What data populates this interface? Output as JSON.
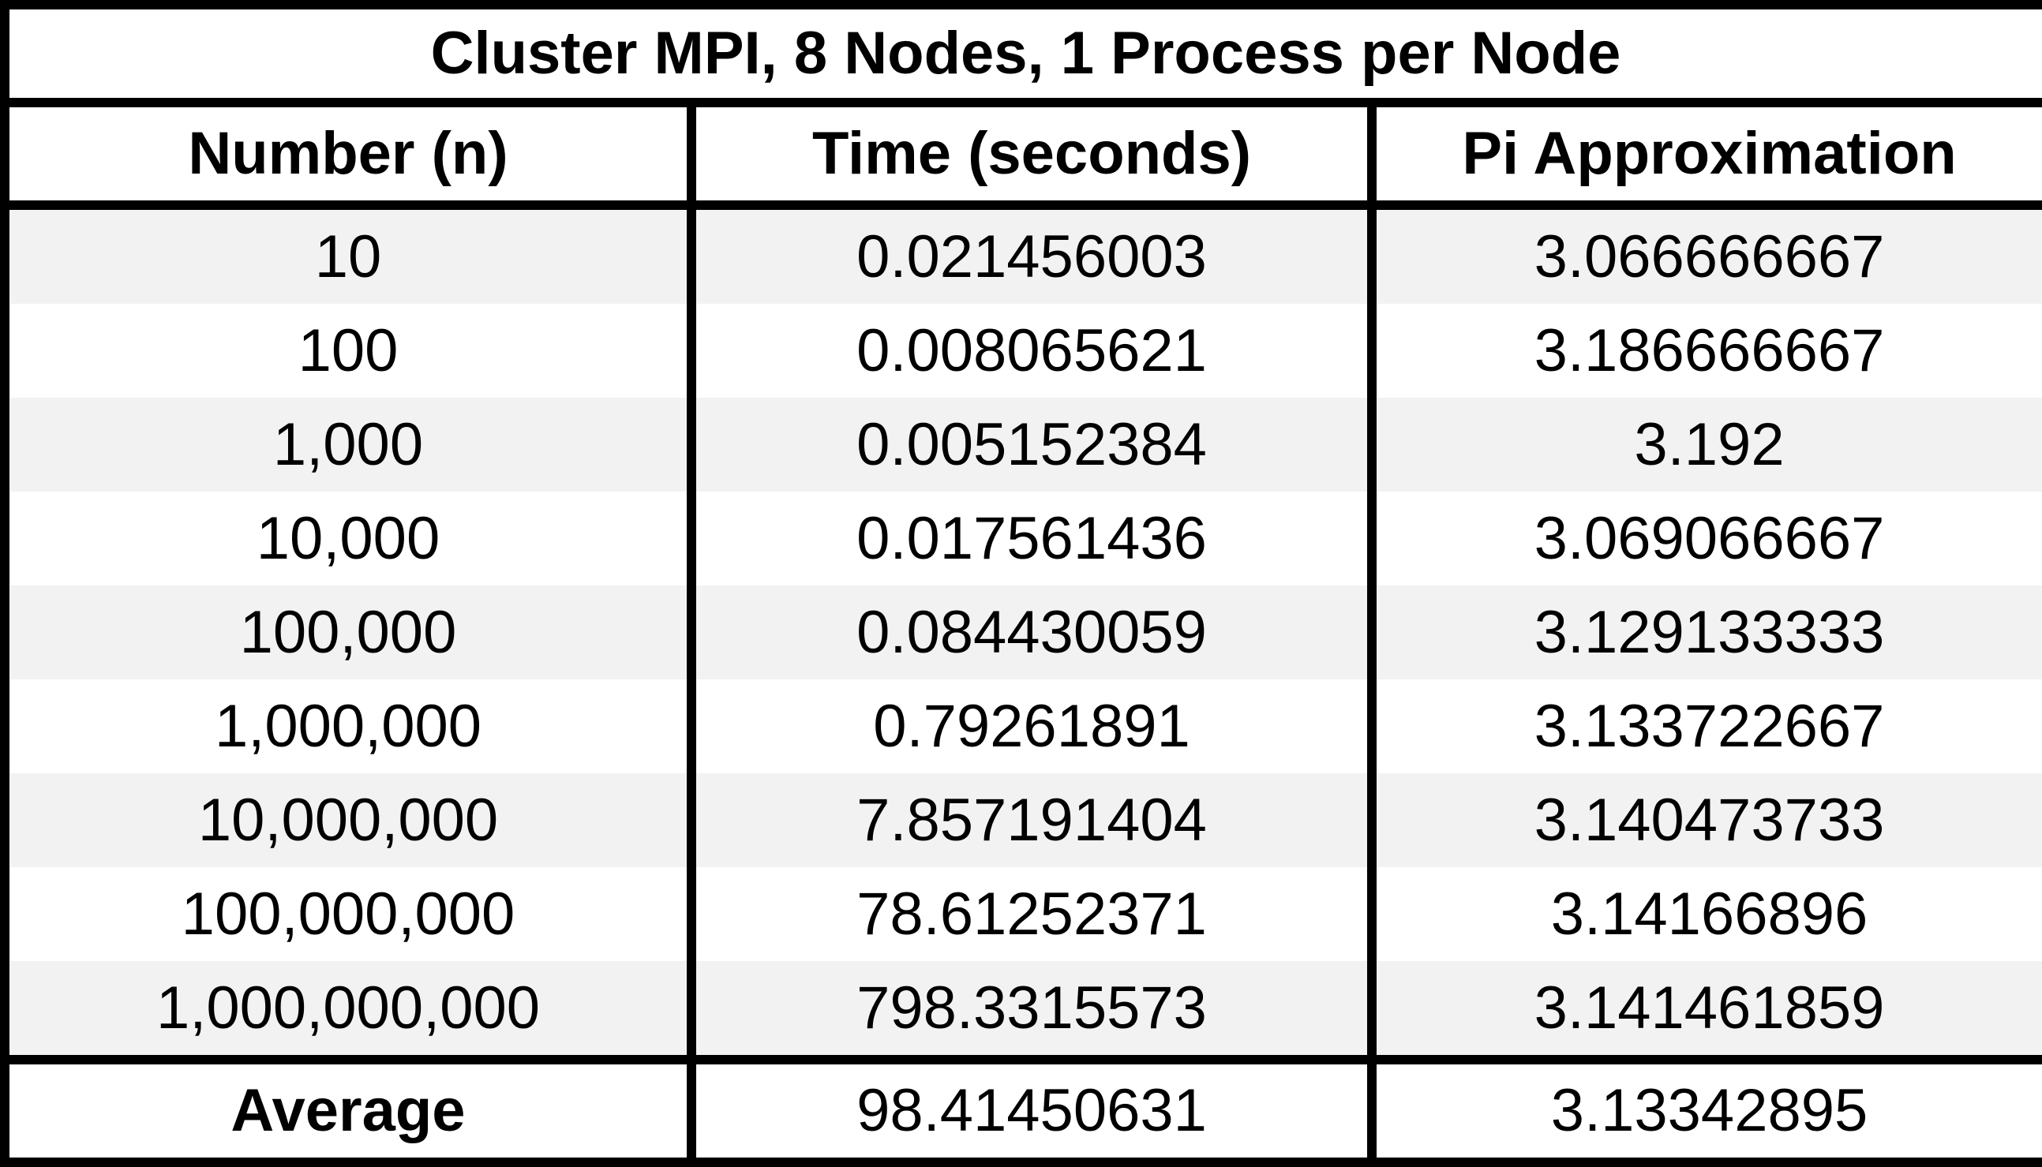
{
  "table": {
    "title": "Cluster MPI, 8 Nodes, 1 Process per Node",
    "headers": [
      "Number (n)",
      "Time (seconds)",
      "Pi Approximation"
    ],
    "rows": [
      [
        "10",
        "0.021456003",
        "3.066666667"
      ],
      [
        "100",
        "0.008065621",
        "3.186666667"
      ],
      [
        "1,000",
        "0.005152384",
        "3.192"
      ],
      [
        "10,000",
        "0.017561436",
        "3.069066667"
      ],
      [
        "100,000",
        "0.084430059",
        "3.129133333"
      ],
      [
        "1,000,000",
        "0.79261891",
        "3.133722667"
      ],
      [
        "10,000,000",
        "7.857191404",
        "3.140473733"
      ],
      [
        "100,000,000",
        "78.61252371",
        "3.14166896"
      ],
      [
        "1,000,000,000",
        "798.3315573",
        "3.141461859"
      ]
    ],
    "average": [
      "Average",
      "98.41450631",
      "3.13342895"
    ]
  },
  "colors": {
    "border": "#000000",
    "shaded_row": "#f2f2f2",
    "plain_row": "#ffffff",
    "text": "#000000"
  }
}
